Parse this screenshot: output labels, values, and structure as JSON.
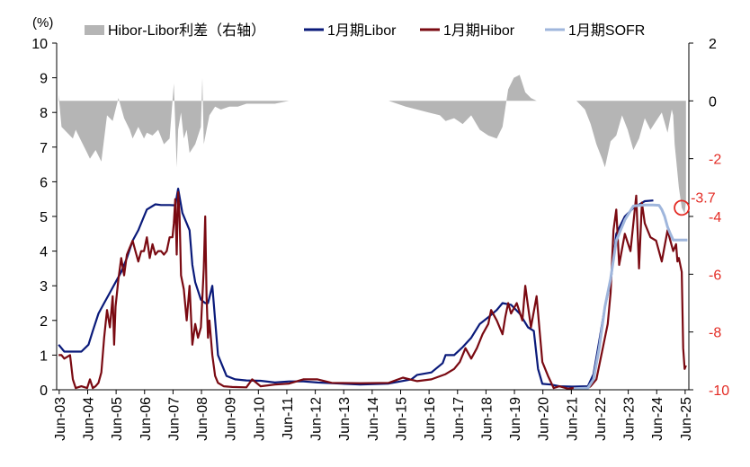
{
  "chart_data": {
    "type": "line",
    "left_unit": "(%)",
    "left_axis": {
      "ylim": [
        0,
        10
      ],
      "ticks": [
        0,
        1,
        2,
        3,
        4,
        5,
        6,
        7,
        8,
        9,
        10
      ]
    },
    "right_axis": {
      "ylim": [
        -10,
        2
      ],
      "ticks": [
        2,
        0,
        -2,
        -4,
        -6,
        -8,
        -10
      ],
      "color": "#e32b24",
      "tick_color_rule": "negative ticks drawn red"
    },
    "x_tick_labels": [
      "Jun-03",
      "Jun-04",
      "Jun-05",
      "Jun-06",
      "Jun-07",
      "Jun-08",
      "Jun-09",
      "Jun-10",
      "Jun-11",
      "Jun-12",
      "Jun-13",
      "Jun-14",
      "Jun-15",
      "Jun-16",
      "Jun-17",
      "Jun-18",
      "Jun-19",
      "Jun-20",
      "Jun-21",
      "Jun-22",
      "Jun-23",
      "Jun-24",
      "Jun-25"
    ],
    "x_range": [
      2003.33,
      2025.55
    ],
    "grid": false,
    "legend_position": "top",
    "series": [
      {
        "name": "Hibor-Libor利差（右轴）",
        "kind": "area",
        "axis": "right",
        "color": "#b5b5b5",
        "x": [
          2003.4,
          2003.5,
          2003.7,
          2003.9,
          2004.0,
          2004.2,
          2004.4,
          2004.5,
          2004.7,
          2004.9,
          2005.1,
          2005.3,
          2005.5,
          2005.7,
          2005.9,
          2006.0,
          2006.2,
          2006.4,
          2006.5,
          2006.7,
          2006.9,
          2007.1,
          2007.3,
          2007.45,
          2007.55,
          2007.6,
          2007.7,
          2007.8,
          2007.9,
          2008.0,
          2008.2,
          2008.4,
          2008.45,
          2008.5,
          2008.6,
          2008.7,
          2008.9,
          2009.1,
          2009.4,
          2009.7,
          2010.0,
          2010.5,
          2011.0,
          2011.5,
          2012.0,
          2012.5,
          2013.0,
          2013.5,
          2014.0,
          2014.5,
          2015.0,
          2015.3,
          2015.6,
          2016.0,
          2016.4,
          2016.8,
          2017.0,
          2017.3,
          2017.6,
          2017.9,
          2018.2,
          2018.5,
          2018.8,
          2019.0,
          2019.2,
          2019.4,
          2019.6,
          2019.8,
          2020.0,
          2020.2,
          2020.4,
          2020.7,
          2021.0,
          2021.3,
          2021.6,
          2021.9,
          2022.1,
          2022.3,
          2022.5,
          2022.6,
          2022.8,
          2023.0,
          2023.2,
          2023.4,
          2023.6,
          2023.8,
          2024.0,
          2024.2,
          2024.4,
          2024.6,
          2024.8,
          2024.95,
          2025.0,
          2025.05,
          2025.1,
          2025.2,
          2025.3,
          2025.4,
          2025.45
        ],
        "values": [
          0.2,
          -0.9,
          -1.1,
          -1.3,
          -1.0,
          -1.4,
          -1.8,
          -2.0,
          -1.7,
          -2.1,
          -0.5,
          -0.7,
          0.1,
          -0.6,
          -1.0,
          -1.3,
          -0.9,
          -1.3,
          -1.1,
          -1.2,
          -1.0,
          -1.5,
          -1.3,
          0.6,
          -2.3,
          -1.0,
          -0.4,
          -1.3,
          -1.0,
          -1.8,
          -1.5,
          -0.9,
          0.8,
          -1.5,
          -1.0,
          -0.5,
          -0.2,
          -0.3,
          -0.2,
          -0.2,
          -0.1,
          -0.1,
          -0.1,
          0.0,
          0.0,
          0.0,
          0.0,
          0.0,
          0.0,
          0.0,
          0.0,
          -0.1,
          -0.2,
          -0.3,
          -0.4,
          -0.5,
          -0.7,
          -0.6,
          -0.8,
          -0.5,
          -1.0,
          -1.2,
          -1.3,
          -0.9,
          0.4,
          0.8,
          0.9,
          0.3,
          0.1,
          0.0,
          0.0,
          0.0,
          0.0,
          0.0,
          0.0,
          -0.3,
          -0.8,
          -1.5,
          -2.0,
          -2.3,
          -1.4,
          -1.2,
          -0.5,
          -1.0,
          -1.7,
          -1.3,
          -0.6,
          -1.0,
          -0.7,
          -0.4,
          -1.1,
          -0.3,
          -0.5,
          -1.5,
          -2.0,
          -3.0,
          -3.7,
          -3.9,
          -3.5
        ]
      },
      {
        "name": "1月期Libor",
        "kind": "line",
        "axis": "left",
        "color": "#0a1a7a",
        "x": [
          2003.4,
          2003.6,
          2003.9,
          2004.2,
          2004.45,
          2004.6,
          2004.8,
          2005.0,
          2005.2,
          2005.4,
          2005.6,
          2005.8,
          2006.0,
          2006.2,
          2006.4,
          2006.5,
          2006.8,
          2007.0,
          2007.3,
          2007.5,
          2007.6,
          2007.75,
          2007.9,
          2008.0,
          2008.1,
          2008.2,
          2008.4,
          2008.55,
          2008.65,
          2008.8,
          2009.0,
          2009.3,
          2009.6,
          2010.0,
          2010.5,
          2011.0,
          2011.5,
          2012.0,
          2012.5,
          2013.0,
          2014.0,
          2015.0,
          2015.8,
          2016.0,
          2016.5,
          2016.9,
          2017.0,
          2017.3,
          2017.6,
          2017.9,
          2018.2,
          2018.5,
          2018.8,
          2019.0,
          2019.3,
          2019.6,
          2019.9,
          2020.1,
          2020.25,
          2020.4,
          2020.7,
          2021.0,
          2021.5,
          2022.0,
          2022.2,
          2022.4,
          2022.6,
          2022.8,
          2023.0,
          2023.3,
          2023.6,
          2024.0,
          2024.3
        ],
        "values": [
          1.3,
          1.1,
          1.1,
          1.1,
          1.3,
          1.7,
          2.2,
          2.5,
          2.8,
          3.1,
          3.4,
          3.8,
          4.3,
          4.6,
          5.0,
          5.2,
          5.35,
          5.33,
          5.33,
          5.32,
          5.8,
          5.1,
          4.8,
          4.6,
          3.6,
          3.1,
          2.6,
          2.5,
          2.5,
          3.0,
          1.0,
          0.4,
          0.3,
          0.27,
          0.26,
          0.21,
          0.24,
          0.24,
          0.21,
          0.19,
          0.15,
          0.18,
          0.3,
          0.43,
          0.5,
          0.77,
          1.0,
          1.0,
          1.23,
          1.5,
          1.9,
          2.09,
          2.3,
          2.5,
          2.45,
          2.2,
          1.8,
          1.7,
          0.6,
          0.17,
          0.15,
          0.1,
          0.09,
          0.1,
          0.45,
          1.4,
          2.4,
          3.1,
          4.5,
          5.0,
          5.24,
          5.44,
          5.46
        ]
      },
      {
        "name": "1月期Hibor",
        "kind": "line",
        "axis": "left",
        "color": "#7a0a12",
        "x": [
          2003.4,
          2003.5,
          2003.6,
          2003.8,
          2003.9,
          2004.0,
          2004.2,
          2004.4,
          2004.5,
          2004.6,
          2004.7,
          2004.8,
          2004.9,
          2005.0,
          2005.1,
          2005.2,
          2005.3,
          2005.35,
          2005.4,
          2005.5,
          2005.6,
          2005.7,
          2005.8,
          2005.9,
          2006.0,
          2006.1,
          2006.2,
          2006.3,
          2006.4,
          2006.5,
          2006.6,
          2006.7,
          2006.8,
          2006.9,
          2007.0,
          2007.1,
          2007.2,
          2007.3,
          2007.4,
          2007.45,
          2007.5,
          2007.55,
          2007.6,
          2007.65,
          2007.7,
          2007.8,
          2007.9,
          2008.0,
          2008.1,
          2008.2,
          2008.3,
          2008.4,
          2008.5,
          2008.55,
          2008.6,
          2008.65,
          2008.7,
          2008.8,
          2008.9,
          2009.0,
          2009.2,
          2009.5,
          2010.0,
          2010.2,
          2010.5,
          2011.0,
          2011.5,
          2012.0,
          2012.5,
          2013.0,
          2014.0,
          2015.0,
          2015.5,
          2016.0,
          2016.5,
          2017.0,
          2017.3,
          2017.5,
          2017.7,
          2017.9,
          2018.1,
          2018.3,
          2018.5,
          2018.6,
          2018.8,
          2019.0,
          2019.1,
          2019.2,
          2019.3,
          2019.5,
          2019.7,
          2019.8,
          2019.9,
          2020.0,
          2020.2,
          2020.4,
          2020.6,
          2020.8,
          2021.0,
          2021.3,
          2021.5,
          2021.7,
          2022.0,
          2022.1,
          2022.3,
          2022.5,
          2022.7,
          2022.8,
          2022.9,
          2023.0,
          2023.1,
          2023.3,
          2023.5,
          2023.7,
          2023.8,
          2023.9,
          2024.0,
          2024.2,
          2024.4,
          2024.6,
          2024.8,
          2025.0,
          2025.1,
          2025.15,
          2025.2,
          2025.3,
          2025.35,
          2025.4,
          2025.45
        ],
        "values": [
          1.0,
          1.0,
          0.9,
          1.0,
          0.3,
          0.05,
          0.1,
          0.05,
          0.3,
          0.05,
          0.1,
          0.2,
          0.5,
          1.5,
          2.3,
          1.8,
          2.7,
          1.3,
          2.4,
          3.2,
          3.8,
          3.3,
          3.9,
          4.1,
          4.3,
          4.0,
          3.7,
          4.0,
          4.0,
          4.4,
          3.8,
          4.2,
          3.9,
          4.0,
          4.0,
          3.9,
          4.0,
          4.4,
          4.4,
          4.8,
          5.5,
          3.9,
          5.7,
          5.0,
          3.3,
          2.9,
          2.0,
          3.0,
          1.3,
          1.9,
          1.5,
          1.8,
          3.5,
          5.0,
          2.7,
          1.5,
          2.0,
          1.0,
          0.4,
          0.2,
          0.1,
          0.08,
          0.07,
          0.3,
          0.1,
          0.15,
          0.18,
          0.3,
          0.3,
          0.2,
          0.19,
          0.2,
          0.35,
          0.25,
          0.3,
          0.45,
          0.6,
          0.8,
          1.2,
          0.9,
          1.2,
          1.6,
          1.9,
          2.3,
          2.0,
          1.6,
          2.1,
          2.5,
          2.2,
          2.5,
          2.0,
          3.0,
          2.4,
          1.8,
          2.7,
          0.8,
          0.4,
          0.05,
          0.1,
          0.03,
          0.05,
          0.02,
          0.05,
          0.1,
          0.3,
          1.1,
          1.9,
          2.8,
          4.6,
          5.2,
          3.6,
          4.5,
          4.0,
          5.6,
          3.5,
          5.4,
          4.8,
          4.4,
          4.3,
          3.7,
          4.6,
          4.0,
          4.2,
          3.7,
          3.8,
          3.4,
          1.2,
          0.6,
          0.7
        ]
      },
      {
        "name": "1月期SOFR",
        "kind": "line",
        "axis": "left",
        "color": "#9fb6dc",
        "x": [
          2021.5,
          2022.0,
          2022.2,
          2022.4,
          2022.6,
          2022.8,
          2023.0,
          2023.3,
          2023.6,
          2024.0,
          2024.3,
          2024.5,
          2024.6,
          2024.7,
          2024.8,
          2024.9,
          2025.0,
          2025.2,
          2025.4,
          2025.5
        ],
        "values": [
          0.03,
          0.05,
          0.3,
          1.2,
          2.4,
          3.2,
          4.3,
          4.9,
          5.3,
          5.33,
          5.33,
          5.32,
          5.2,
          5.0,
          4.7,
          4.5,
          4.32,
          4.32,
          4.32,
          4.32
        ]
      }
    ],
    "annotations": [
      {
        "kind": "circle_marker",
        "series": "Hibor-Libor利差（右轴）",
        "x": 2025.3,
        "value": -3.7,
        "label": "-3.7",
        "color": "#e32b24"
      }
    ]
  }
}
